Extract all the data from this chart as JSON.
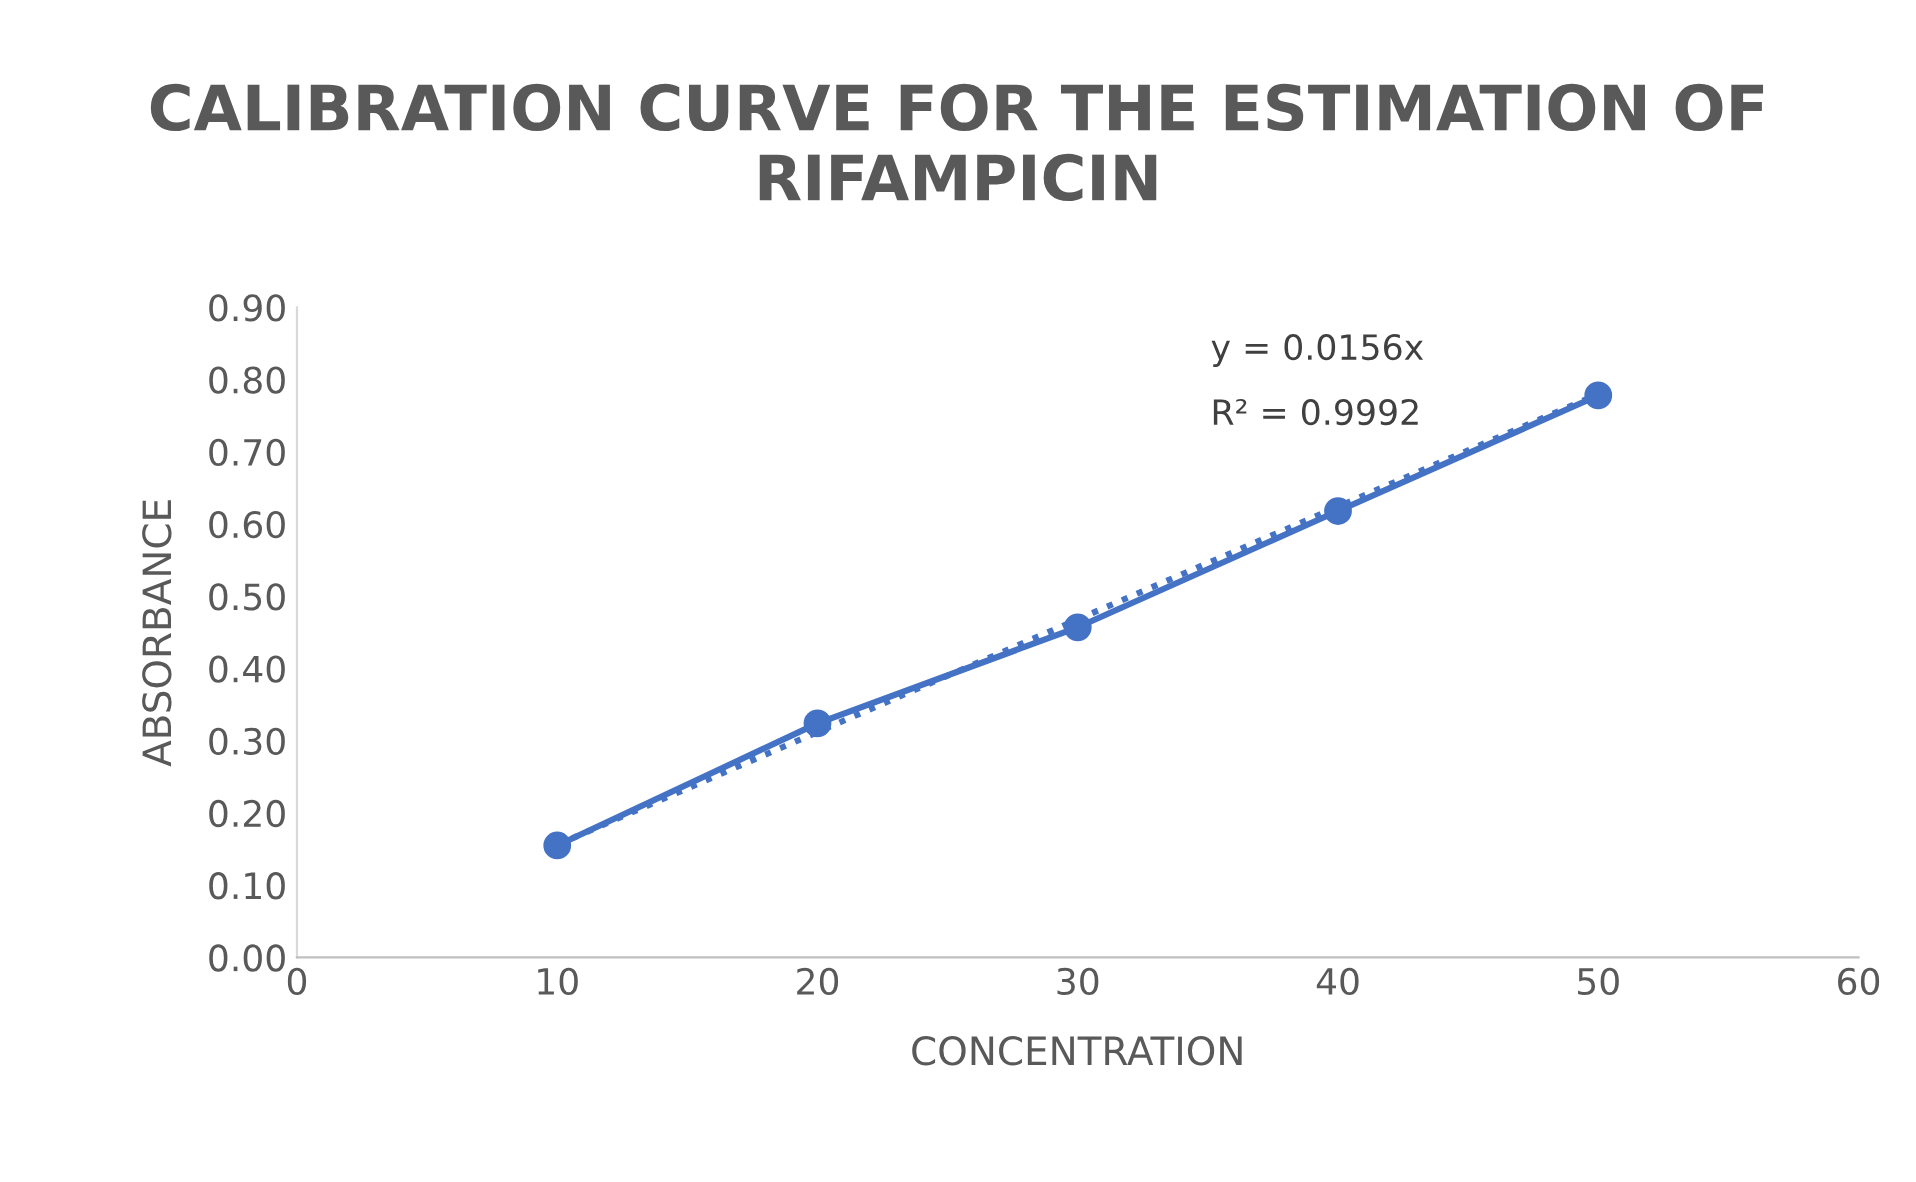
{
  "chart_data": {
    "type": "line",
    "title": "CALIBRATION CURVE FOR THE ESTIMATION OF RIFAMPICIN",
    "xlabel": "CONCENTRATION",
    "ylabel": "ABSORBANCE",
    "x": [
      10,
      20,
      30,
      40,
      50
    ],
    "series": [
      {
        "color": "#4472c4",
        "values": [
          0.155,
          0.324,
          0.457,
          0.618,
          0.778
        ],
        "marker": "circle",
        "line_style": "solid"
      },
      {
        "type": "line",
        "color": "#4472c4",
        "x": [
          10,
          50
        ],
        "values": [
          0.156,
          0.78
        ],
        "marker": "none",
        "line_style": "dotted"
      }
    ],
    "annotations": [
      "y = 0.0156x",
      "R² = 0.9992"
    ],
    "xlim": [
      0,
      60
    ],
    "xticks": [
      0,
      10,
      20,
      30,
      40,
      50,
      60
    ],
    "ylim": [
      0,
      0.9
    ],
    "yticks": [
      {
        "value": 0,
        "label": "0.00"
      },
      {
        "value": 0.1,
        "label": "0.10"
      },
      {
        "value": 0.2,
        "label": "0.20"
      },
      {
        "value": 0.3,
        "label": "0.30"
      },
      {
        "value": 0.4,
        "label": "0.40"
      },
      {
        "value": 0.5,
        "label": "0.50"
      },
      {
        "value": 0.6,
        "label": "0.60"
      },
      {
        "value": 0.7,
        "label": "0.70"
      },
      {
        "value": 0.8,
        "label": "0.80"
      },
      {
        "value": 0.9,
        "label": "0.90"
      }
    ],
    "grid": false
  }
}
